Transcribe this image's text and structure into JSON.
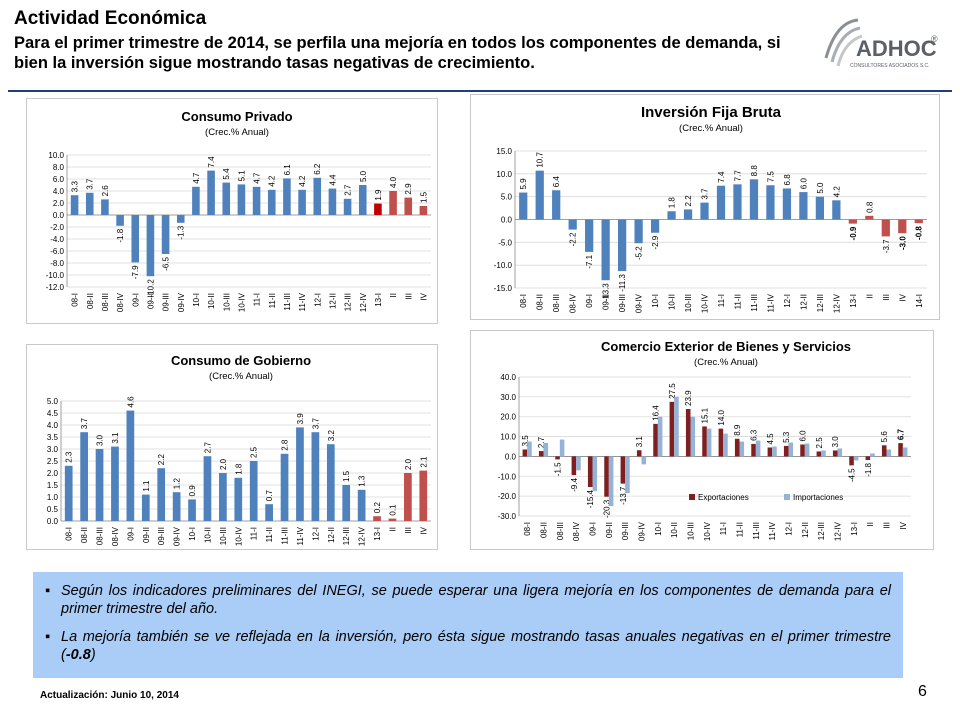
{
  "header": {
    "title": "Actividad Económica",
    "subtitle": "Para el primer trimestre de 2014, se perfila una mejoría en todos los componentes de demanda, si bien la inversión sigue mostrando tasas negativas de crecimiento."
  },
  "logo": {
    "name": "ADHOC",
    "mark": "®",
    "tagline": "CONSULTORES ASOCIADOS S.C."
  },
  "colors": {
    "blue": "#4f81bd",
    "red": "#c0504d",
    "darkred": "#c00000",
    "darkred2": "#7f1f1f",
    "lightblue": "#95b3d7"
  },
  "notes": [
    "Según los indicadores preliminares del INEGI, se puede esperar una ligera mejoría en los componentes de demanda para el primer trimestre del año.",
    "La mejoría también se ve reflejada en la inversión, pero ésta sigue mostrando tasas anuales negativas en el primer trimestre (-0.8)"
  ],
  "notes_bold_value": "-0.8",
  "footer": {
    "update": "Actualización: Junio 10, 2014",
    "page": "6"
  },
  "chart_data": [
    {
      "id": "consumo-privado",
      "type": "bar",
      "title": "Consumo Privado",
      "subtitle": "(Crec.% Anual)",
      "ylim": [
        -12,
        10
      ],
      "yticks": [
        "10.0",
        "8.0",
        "6.0",
        "4.0",
        "2.0",
        "0.0",
        "-2.0",
        "-4.0",
        "-6.0",
        "-8.0",
        "-10.0",
        "-12.0"
      ],
      "categories": [
        "08-I",
        "08-II",
        "08-III",
        "08-IV",
        "09-I",
        "09-II",
        "09-III",
        "09-IV",
        "10-I",
        "10-II",
        "10-III",
        "10-IV",
        "11-I",
        "11-II",
        "11-III",
        "11-IV",
        "12-I",
        "12-II",
        "12-III",
        "12-IV",
        "13-I",
        "II",
        "III",
        "IV"
      ],
      "values": [
        3.3,
        3.7,
        2.6,
        -1.8,
        -7.9,
        -10.2,
        -6.5,
        -1.3,
        4.7,
        7.4,
        5.4,
        5.1,
        4.7,
        4.2,
        6.1,
        4.2,
        6.2,
        4.4,
        2.7,
        5.0,
        1.9,
        4.0,
        2.9,
        1.5
      ],
      "labels": [
        "3.3",
        "3.7",
        "2.6",
        "-1.8",
        "-7.9",
        "-10.2",
        "-6.5",
        "-1.3",
        "4.7",
        "7.4",
        "5.4",
        "5.1",
        "4.7",
        "4.2",
        "6.1",
        "4.2",
        "6.2",
        "4.4",
        "2.7",
        "5.0",
        "1.9",
        "4.0",
        "2.9",
        "1.5"
      ],
      "bar_colors": [
        "blue",
        "blue",
        "blue",
        "blue",
        "blue",
        "blue",
        "blue",
        "blue",
        "blue",
        "blue",
        "blue",
        "blue",
        "blue",
        "blue",
        "blue",
        "blue",
        "blue",
        "blue",
        "blue",
        "blue",
        "darkred",
        "red",
        "red",
        "red"
      ]
    },
    {
      "id": "inversion-fija-bruta",
      "type": "bar",
      "title": "Inversión Fija Bruta",
      "subtitle": "(Crec.% Anual)",
      "ylim": [
        -15,
        15
      ],
      "yticks": [
        "15.0",
        "10.0",
        "5.0",
        "0.0",
        "-5.0",
        "-10.0",
        "-15.0"
      ],
      "categories": [
        "08-I",
        "08-II",
        "08-III",
        "08-IV",
        "09-I",
        "09-II",
        "09-III",
        "09-IV",
        "10-I",
        "10-II",
        "10-III",
        "10-IV",
        "11-I",
        "11-II",
        "11-III",
        "11-IV",
        "12-I",
        "12-II",
        "12-III",
        "12-IV",
        "13-I",
        "II",
        "III",
        "IV",
        "14-I"
      ],
      "values": [
        5.9,
        10.7,
        6.4,
        -2.2,
        -7.1,
        -13.3,
        -11.3,
        -5.2,
        -2.9,
        1.8,
        2.2,
        3.7,
        7.4,
        7.7,
        8.8,
        7.5,
        6.8,
        6.0,
        5.0,
        4.2,
        -0.9,
        0.8,
        -3.7,
        -3.0,
        -0.8
      ],
      "labels": [
        "5.9",
        "10.7",
        "6.4",
        "-2.2",
        "-7.1",
        "-13.3",
        "-11.3",
        "-5.2",
        "-2.9",
        "1.8",
        "2.2",
        "3.7",
        "7.4",
        "7.7",
        "8.8",
        "7.5",
        "6.8",
        "6.0",
        "5.0",
        "4.2",
        "-0.9",
        "0.8",
        "-3.7",
        "-3.0",
        "-0.8"
      ],
      "bold_labels": [
        20,
        23,
        24
      ],
      "bar_colors": [
        "blue",
        "blue",
        "blue",
        "blue",
        "blue",
        "blue",
        "blue",
        "blue",
        "blue",
        "blue",
        "blue",
        "blue",
        "blue",
        "blue",
        "blue",
        "blue",
        "blue",
        "blue",
        "blue",
        "blue",
        "red",
        "red",
        "red",
        "red",
        "red"
      ]
    },
    {
      "id": "consumo-gobierno",
      "type": "bar",
      "title": "Consumo de Gobierno",
      "subtitle": "(Crec.% Anual)",
      "ylim": [
        0,
        5
      ],
      "yticks": [
        "5.0",
        "4.5",
        "4.0",
        "3.5",
        "3.0",
        "2.5",
        "2.0",
        "1.5",
        "1.0",
        "0.5",
        "0.0"
      ],
      "categories": [
        "08-I",
        "08-II",
        "08-III",
        "08-IV",
        "09-I",
        "09-II",
        "09-III",
        "09-IV",
        "10-I",
        "10-II",
        "10-III",
        "10-IV",
        "11-I",
        "11-II",
        "11-III",
        "11-IV",
        "12-I",
        "12-II",
        "12-III",
        "12-IV",
        "13-I",
        "II",
        "III",
        "IV"
      ],
      "values": [
        2.3,
        3.7,
        3.0,
        3.1,
        4.6,
        1.1,
        2.2,
        1.2,
        0.9,
        2.7,
        2.0,
        1.8,
        2.5,
        0.7,
        2.8,
        3.9,
        3.7,
        3.2,
        1.5,
        1.3,
        0.2,
        0.1,
        2.0,
        2.1
      ],
      "labels": [
        "2.3",
        "3.7",
        "3.0",
        "3.1",
        "4.6",
        "1.1",
        "2.2",
        "1.2",
        "0.9",
        "2.7",
        "2.0",
        "1.8",
        "2.5",
        "0.7",
        "2.8",
        "3.9",
        "3.7",
        "3.2",
        "1.5",
        "1.3",
        "0.2",
        "0.1",
        "2.0",
        "2.1"
      ],
      "bar_colors": [
        "blue",
        "blue",
        "blue",
        "blue",
        "blue",
        "blue",
        "blue",
        "blue",
        "blue",
        "blue",
        "blue",
        "blue",
        "blue",
        "blue",
        "blue",
        "blue",
        "blue",
        "blue",
        "blue",
        "blue",
        "red",
        "red",
        "red",
        "red"
      ]
    },
    {
      "id": "comercio-exterior",
      "type": "bar",
      "title": "Comercio Exterior de Bienes y Servicios",
      "subtitle": "(Crec.% Anual)",
      "ylim": [
        -30,
        40
      ],
      "yticks": [
        "40.0",
        "30.0",
        "20.0",
        "10.0",
        "0.0",
        "-10.0",
        "-20.0",
        "-30.0"
      ],
      "legend": "bottom",
      "categories": [
        "08-I",
        "08-II",
        "08-III",
        "08-IV",
        "09-I",
        "09-II",
        "09-III",
        "09-IV",
        "10-I",
        "10-II",
        "10-III",
        "10-IV",
        "11-I",
        "11-II",
        "11-III",
        "11-IV",
        "12-I",
        "12-II",
        "12-III",
        "12-IV",
        "13-I",
        "II",
        "III",
        "IV"
      ],
      "series": [
        {
          "name": "Exportaciones",
          "color": "darkred2",
          "values": [
            3.5,
            2.7,
            -1.5,
            -9.4,
            -15.4,
            -20.3,
            -13.7,
            3.1,
            16.4,
            27.5,
            23.9,
            15.1,
            14.0,
            8.9,
            6.3,
            4.5,
            5.3,
            6.0,
            2.5,
            3.0,
            -4.5,
            -1.8,
            5.6,
            6.7
          ],
          "labels": [
            "3.5",
            "2.7",
            "-1.5",
            "-9.4",
            "-15.4",
            "-20.3",
            "-13.7",
            "3.1",
            "16.4",
            "27.5",
            "23.9",
            "15.1",
            "14.0",
            "8.9",
            "6.3",
            "4.5",
            "5.3",
            "6.0",
            "2.5",
            "3.0",
            "-4.5",
            "-1.8",
            "5.6",
            "6.7"
          ],
          "bold_labels": [
            23
          ]
        },
        {
          "name": "Importaciones",
          "color": "lightblue",
          "values": [
            7.5,
            6.8,
            8.5,
            -7.0,
            -17.5,
            -25.0,
            -18.5,
            -4.0,
            20.0,
            30.0,
            20.0,
            14.0,
            11.5,
            7.5,
            8.0,
            5.0,
            7.0,
            6.5,
            3.0,
            4.0,
            -2.0,
            1.5,
            3.5,
            4.5
          ]
        }
      ]
    }
  ]
}
